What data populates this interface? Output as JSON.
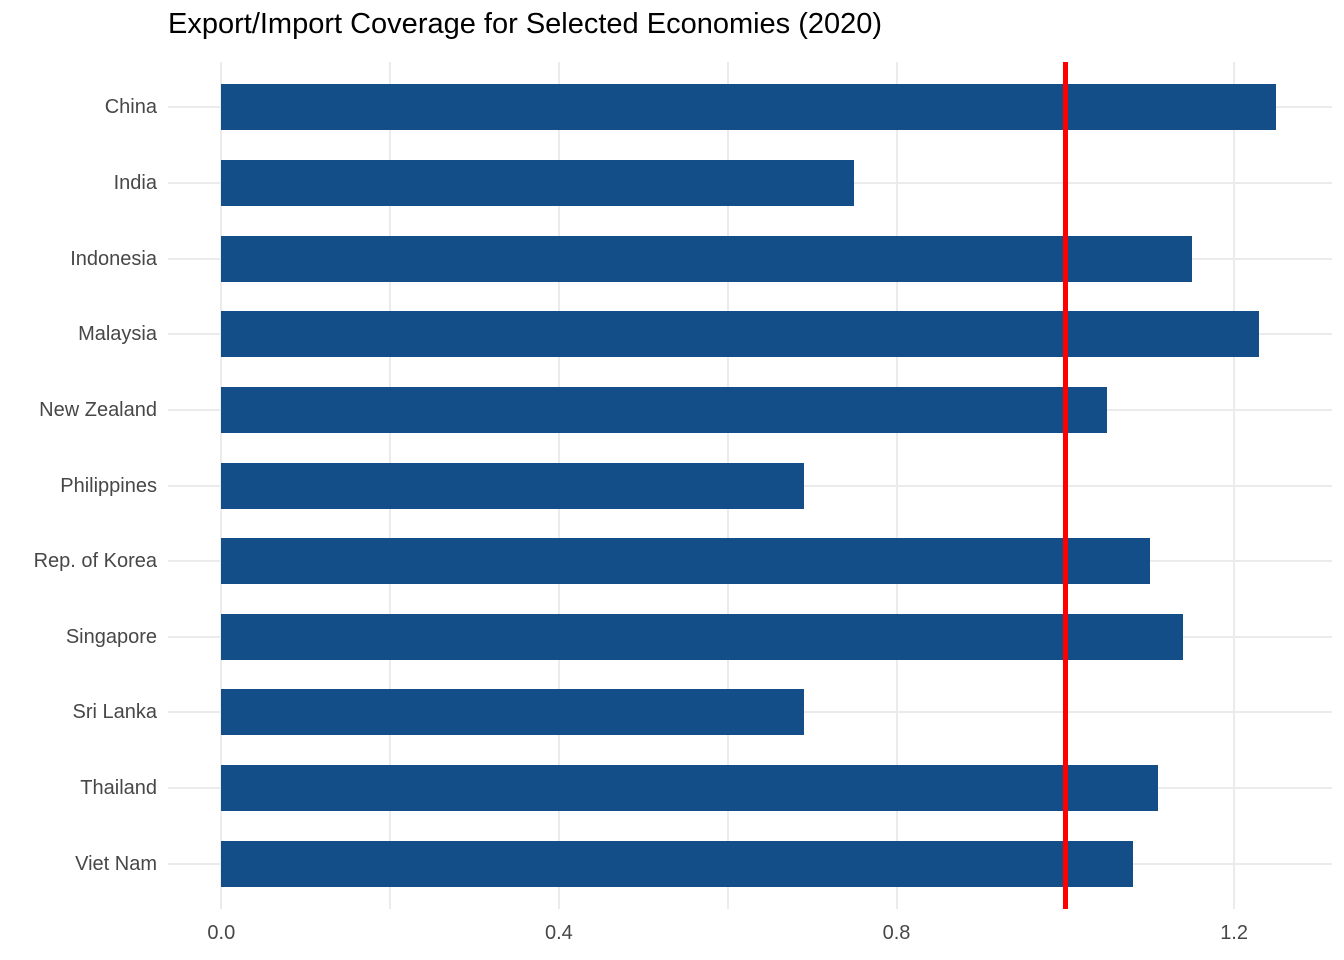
{
  "chart_data": {
    "type": "bar",
    "orientation": "horizontal",
    "title": "Export/Import Coverage for Selected Economies (2020)",
    "categories": [
      "China",
      "India",
      "Indonesia",
      "Malaysia",
      "New Zealand",
      "Philippines",
      "Rep. of Korea",
      "Singapore",
      "Sri Lanka",
      "Thailand",
      "Viet Nam"
    ],
    "values": [
      1.25,
      0.75,
      1.15,
      1.23,
      1.05,
      0.69,
      1.1,
      1.14,
      0.69,
      1.11,
      1.08
    ],
    "x_ticks": [
      {
        "value": 0.0,
        "label": "0.0"
      },
      {
        "value": 0.4,
        "label": "0.4"
      },
      {
        "value": 0.8,
        "label": "0.8"
      },
      {
        "value": 1.2,
        "label": "1.2"
      }
    ],
    "gridline_values": [
      0.0,
      0.2,
      0.4,
      0.6,
      0.8,
      1.0,
      1.2
    ],
    "xlim": [
      -0.063,
      1.316
    ],
    "reference_line": {
      "value": 1.0,
      "color": "#FF0000"
    },
    "bar_color": "#134E89",
    "grid_color": "#EBEBEB",
    "axis_text_color": "#474747",
    "title_color": "#000000",
    "legend": "none",
    "grid": "on"
  }
}
